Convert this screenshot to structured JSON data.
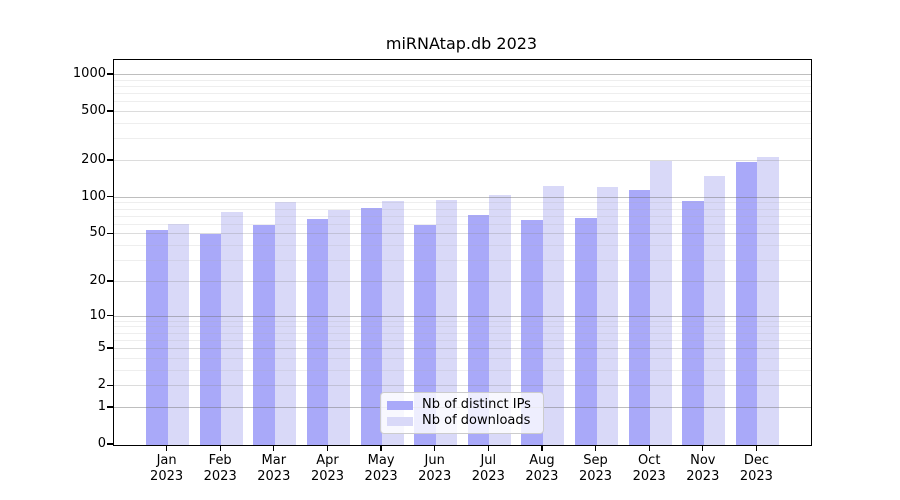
{
  "title": "miRNAtap.db 2023",
  "colors": {
    "ips_bar": "#a9a9f9",
    "downloads_bar": "#d9d9f8",
    "spine": "#000000",
    "grid_major": "#9e9e9e",
    "grid_minor": "#dddddd",
    "legend_border": "#cccccc"
  },
  "chart_data": {
    "type": "bar",
    "title": "miRNAtap.db 2023",
    "xlabel": "",
    "ylabel": "",
    "y_scale": "log1p",
    "grid": true,
    "legend_position": "lower center",
    "categories": [
      "Jan 2023",
      "Feb 2023",
      "Mar 2023",
      "Apr 2023",
      "May 2023",
      "Jun 2023",
      "Jul 2023",
      "Aug 2023",
      "Sep 2023",
      "Oct 2023",
      "Nov 2023",
      "Dec 2023"
    ],
    "series": [
      {
        "name": "Nb of distinct IPs",
        "color": "#a9a9f9",
        "values": [
          54,
          50,
          60,
          67,
          83,
          60,
          73,
          66,
          68,
          115,
          95,
          196
        ]
      },
      {
        "name": "Nb of downloads",
        "color": "#d9d9f8",
        "values": [
          61,
          77,
          92,
          80,
          95,
          96,
          105,
          126,
          122,
          200,
          150,
          215
        ]
      }
    ],
    "yticks": [
      0,
      1,
      2,
      5,
      10,
      20,
      50,
      100,
      200,
      500,
      1000
    ],
    "ylim": [
      0,
      1150
    ]
  }
}
